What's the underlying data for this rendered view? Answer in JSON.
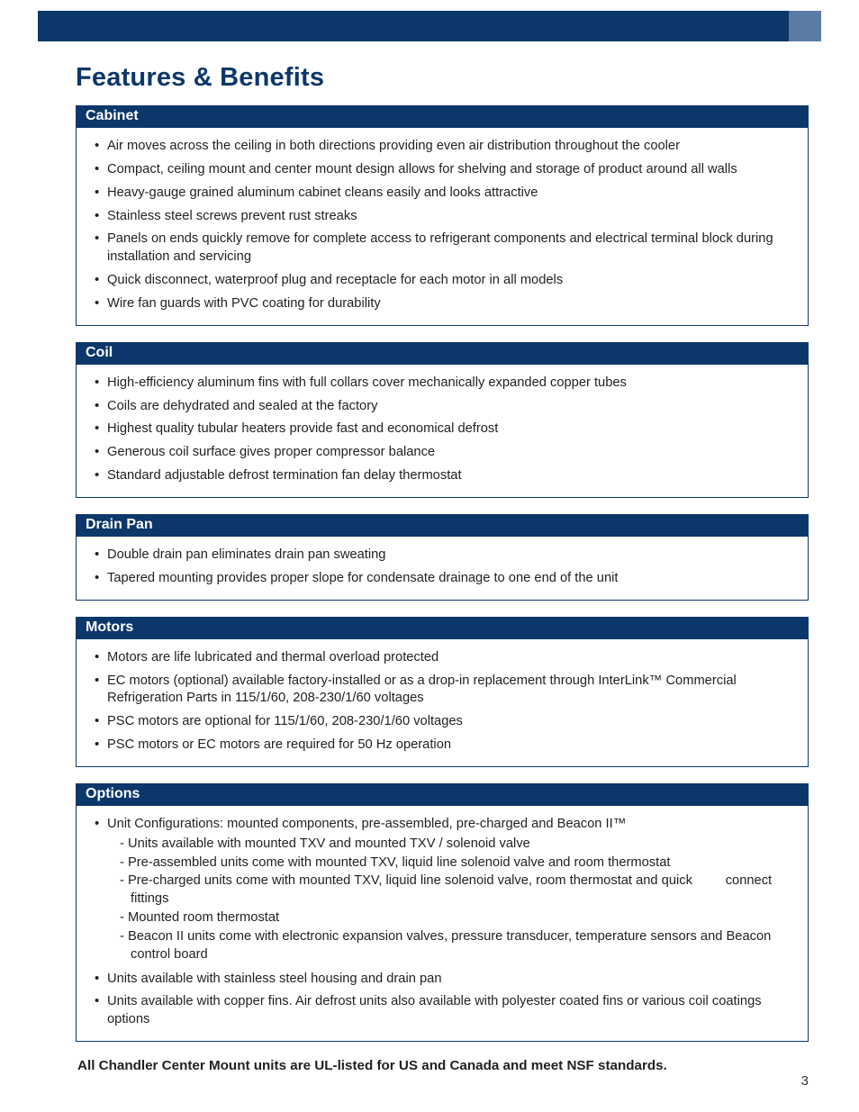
{
  "colors": {
    "brand_navy": "#0c376a",
    "brand_navy_light": "#5a7ca5",
    "text": "#231f20",
    "background": "#ffffff"
  },
  "page_number": "3",
  "title": "Features & Benefits",
  "footer_note": "All Chandler Center Mount units are UL-listed for US and Canada and meet NSF standards.",
  "sections": [
    {
      "header": "Cabinet",
      "items": [
        {
          "text": "Air moves across the ceiling in both directions providing even air distribution throughout the cooler"
        },
        {
          "text": "Compact, ceiling mount and center mount design allows for shelving and storage of product around all walls"
        },
        {
          "text": "Heavy-gauge grained aluminum cabinet cleans easily and looks attractive"
        },
        {
          "text": "Stainless steel screws prevent rust streaks"
        },
        {
          "text": "Panels on ends quickly remove for complete access to refrigerant components and electrical terminal block during installation and servicing"
        },
        {
          "text": "Quick disconnect, waterproof plug and receptacle for each motor in all models"
        },
        {
          "text": "Wire fan guards with PVC coating for durability"
        }
      ]
    },
    {
      "header": "Coil",
      "items": [
        {
          "text": "High-efficiency aluminum fins with full collars cover mechanically expanded copper tubes"
        },
        {
          "text": "Coils are dehydrated and sealed at the factory"
        },
        {
          "text": "Highest quality tubular heaters provide fast and economical defrost"
        },
        {
          "text": "Generous coil surface gives proper compressor balance"
        },
        {
          "text": "Standard adjustable defrost termination fan delay thermostat"
        }
      ]
    },
    {
      "header": "Drain Pan",
      "items": [
        {
          "text": "Double drain pan eliminates drain pan sweating"
        },
        {
          "text": "Tapered mounting provides proper slope for condensate drainage to one end of the unit"
        }
      ]
    },
    {
      "header": "Motors",
      "items": [
        {
          "text": "Motors are life lubricated and thermal overload protected"
        },
        {
          "text": "EC motors (optional) available factory-installed or as a drop-in replacement through InterLink™ Commercial Refrigeration Parts in 115/1/60, 208-230/1/60 voltages"
        },
        {
          "text": "PSC motors are optional for 115/1/60, 208-230/1/60 voltages"
        },
        {
          "text": "PSC motors or EC motors are required for 50 Hz operation"
        }
      ]
    },
    {
      "header": "Options",
      "items": [
        {
          "text": "Unit Configurations: mounted components, pre-assembled, pre-charged and Beacon II™",
          "subitems": [
            "- Units available with mounted TXV and mounted TXV / solenoid valve",
            "- Pre-assembled units come with mounted TXV, liquid line solenoid valve and room thermostat",
            "- Pre-charged units come with mounted TXV, liquid line solenoid valve, room thermostat and quick         connect fittings",
            "- Mounted room thermostat",
            "- Beacon II units come with electronic expansion valves, pressure transducer, temperature sensors and Beacon control board"
          ]
        },
        {
          "text": "Units available with stainless steel housing and drain pan"
        },
        {
          "text": "Units available with copper fins. Air defrost units also available with polyester coated fins or various coil coatings options"
        }
      ]
    }
  ]
}
